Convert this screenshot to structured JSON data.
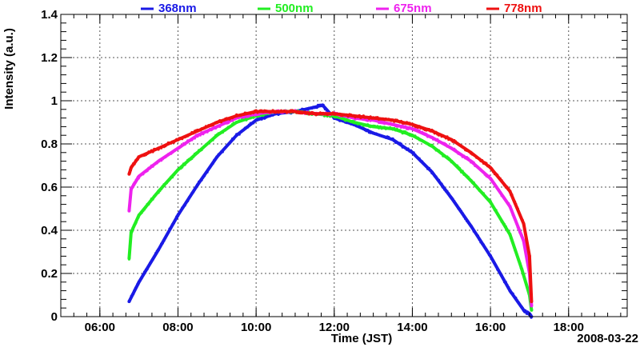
{
  "chart_data": {
    "type": "line",
    "title": "",
    "xlabel": "Time (JST)",
    "ylabel": "Intensity (a.u.)",
    "date_label": "2008-03-22",
    "x_unit": "hours",
    "xlim": [
      5.0,
      19.5
    ],
    "ylim": [
      0,
      1.4
    ],
    "grid": true,
    "legend_position": "top",
    "x_ticks": [
      {
        "value": 6,
        "label": "06:00"
      },
      {
        "value": 8,
        "label": "08:00"
      },
      {
        "value": 10,
        "label": "10:00"
      },
      {
        "value": 12,
        "label": "12:00"
      },
      {
        "value": 14,
        "label": "14:00"
      },
      {
        "value": 16,
        "label": "16:00"
      },
      {
        "value": 18,
        "label": "18:00"
      }
    ],
    "y_ticks": [
      {
        "value": 0,
        "label": "0"
      },
      {
        "value": 0.2,
        "label": "0.2"
      },
      {
        "value": 0.4,
        "label": "0.4"
      },
      {
        "value": 0.6,
        "label": "0.6"
      },
      {
        "value": 0.8,
        "label": "0.8"
      },
      {
        "value": 1.0,
        "label": "1"
      },
      {
        "value": 1.2,
        "label": "1.2"
      },
      {
        "value": 1.4,
        "label": "1.4"
      }
    ],
    "series": [
      {
        "name": "368nm",
        "color": "#1a1ae6",
        "x": [
          6.75,
          7.0,
          7.5,
          8.0,
          8.5,
          9.0,
          9.5,
          10.0,
          10.5,
          11.0,
          11.5,
          11.7,
          12.0,
          12.5,
          13.0,
          13.5,
          14.0,
          14.5,
          15.0,
          15.5,
          16.0,
          16.5,
          16.85,
          17.0,
          17.05
        ],
        "values": [
          0.07,
          0.16,
          0.31,
          0.47,
          0.61,
          0.74,
          0.84,
          0.91,
          0.94,
          0.95,
          0.97,
          0.98,
          0.92,
          0.89,
          0.85,
          0.82,
          0.76,
          0.67,
          0.55,
          0.42,
          0.28,
          0.12,
          0.03,
          0.01,
          0.0
        ]
      },
      {
        "name": "500nm",
        "color": "#22ee22",
        "x": [
          6.75,
          6.8,
          7.0,
          7.5,
          8.0,
          8.5,
          9.0,
          9.5,
          10.0,
          10.5,
          11.0,
          11.5,
          12.0,
          12.5,
          13.0,
          13.5,
          14.0,
          14.5,
          15.0,
          15.5,
          16.0,
          16.5,
          16.8,
          17.0,
          17.05
        ],
        "values": [
          0.27,
          0.39,
          0.47,
          0.58,
          0.68,
          0.76,
          0.84,
          0.9,
          0.93,
          0.95,
          0.95,
          0.94,
          0.93,
          0.9,
          0.88,
          0.87,
          0.84,
          0.79,
          0.72,
          0.63,
          0.53,
          0.38,
          0.22,
          0.1,
          0.03
        ]
      },
      {
        "name": "675nm",
        "color": "#ee22ee",
        "x": [
          6.75,
          6.8,
          7.0,
          7.5,
          8.0,
          8.5,
          9.0,
          9.5,
          10.0,
          10.5,
          11.0,
          11.5,
          12.0,
          12.5,
          13.0,
          13.5,
          14.0,
          14.5,
          15.0,
          15.5,
          16.0,
          16.5,
          16.85,
          17.0,
          17.05
        ],
        "values": [
          0.49,
          0.59,
          0.65,
          0.72,
          0.78,
          0.84,
          0.88,
          0.92,
          0.94,
          0.95,
          0.95,
          0.94,
          0.94,
          0.92,
          0.91,
          0.89,
          0.87,
          0.83,
          0.78,
          0.72,
          0.64,
          0.51,
          0.35,
          0.2,
          0.05
        ]
      },
      {
        "name": "778nm",
        "color": "#ee1111",
        "x": [
          6.75,
          6.8,
          7.0,
          7.5,
          8.0,
          8.5,
          9.0,
          9.5,
          10.0,
          10.5,
          11.0,
          11.5,
          12.0,
          12.5,
          13.0,
          13.5,
          14.0,
          14.5,
          15.0,
          15.5,
          16.0,
          16.5,
          16.85,
          17.0,
          17.05
        ],
        "values": [
          0.66,
          0.69,
          0.74,
          0.78,
          0.82,
          0.86,
          0.9,
          0.93,
          0.95,
          0.95,
          0.95,
          0.94,
          0.94,
          0.93,
          0.92,
          0.91,
          0.89,
          0.86,
          0.82,
          0.76,
          0.69,
          0.58,
          0.43,
          0.28,
          0.07
        ]
      }
    ]
  }
}
